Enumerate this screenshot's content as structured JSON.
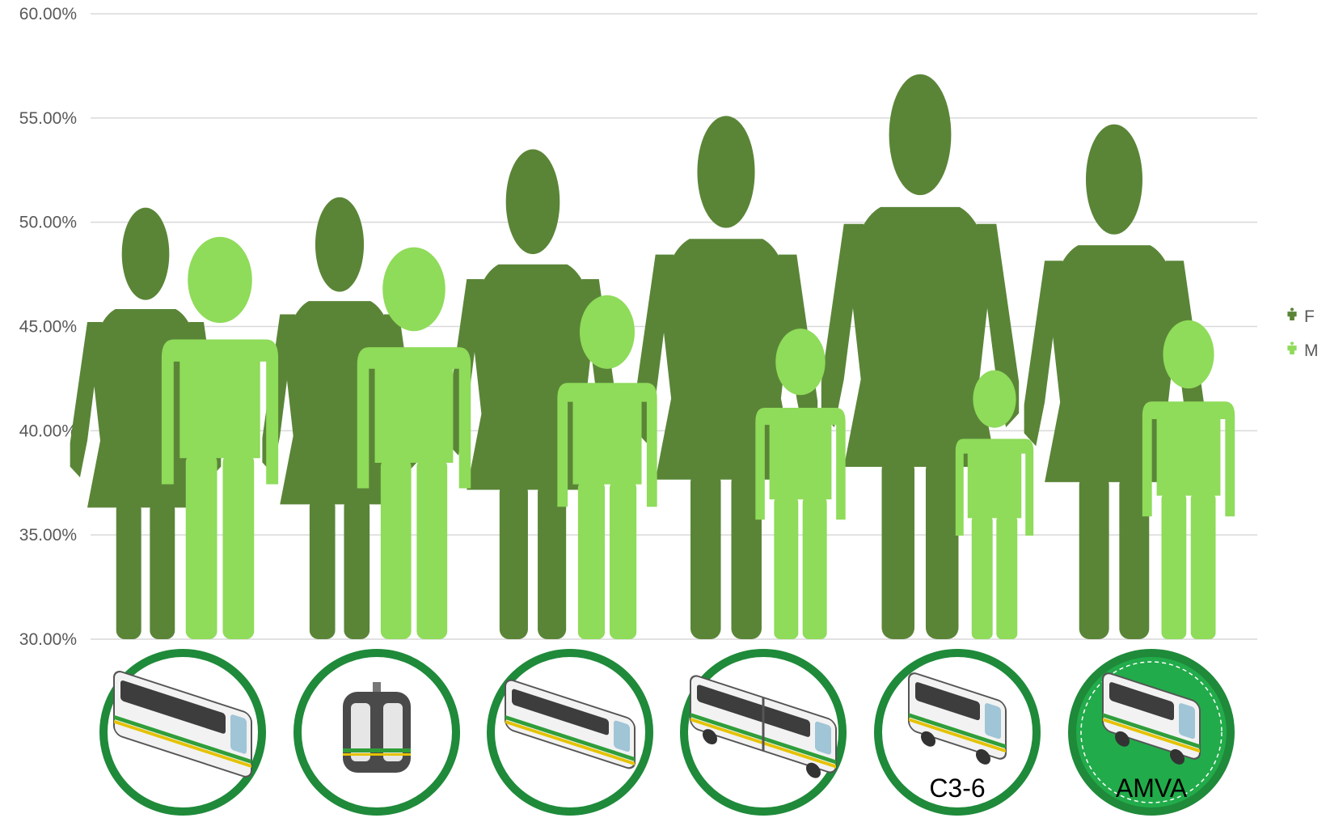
{
  "chart_data": {
    "type": "bar",
    "title": "",
    "xlabel": "",
    "ylabel": "",
    "ylim": [
      0.3,
      0.6
    ],
    "yticks": [
      "30.00%",
      "35.00%",
      "40.00%",
      "45.00%",
      "50.00%",
      "55.00%",
      "60.00%"
    ],
    "grid": true,
    "legend_position": "right",
    "categories": [
      {
        "label": "",
        "icon": "metro-train-icon"
      },
      {
        "label": "",
        "icon": "cable-car-icon"
      },
      {
        "label": "",
        "icon": "tram-icon"
      },
      {
        "label": "",
        "icon": "articulated-bus-icon"
      },
      {
        "label": "C3-6",
        "icon": "minibus-icon"
      },
      {
        "label": "AMVA",
        "icon": "minibus-icon"
      }
    ],
    "series": [
      {
        "name": "F",
        "color": "#5a8537",
        "values": [
          0.507,
          0.512,
          0.535,
          0.551,
          0.571,
          0.547
        ]
      },
      {
        "name": "M",
        "color": "#8fdb5a",
        "values": [
          0.493,
          0.488,
          0.465,
          0.449,
          0.429,
          0.453
        ]
      }
    ],
    "badge_ring_color": "#1f8a3a",
    "badge_fill_highlight": "#22ab4a"
  }
}
